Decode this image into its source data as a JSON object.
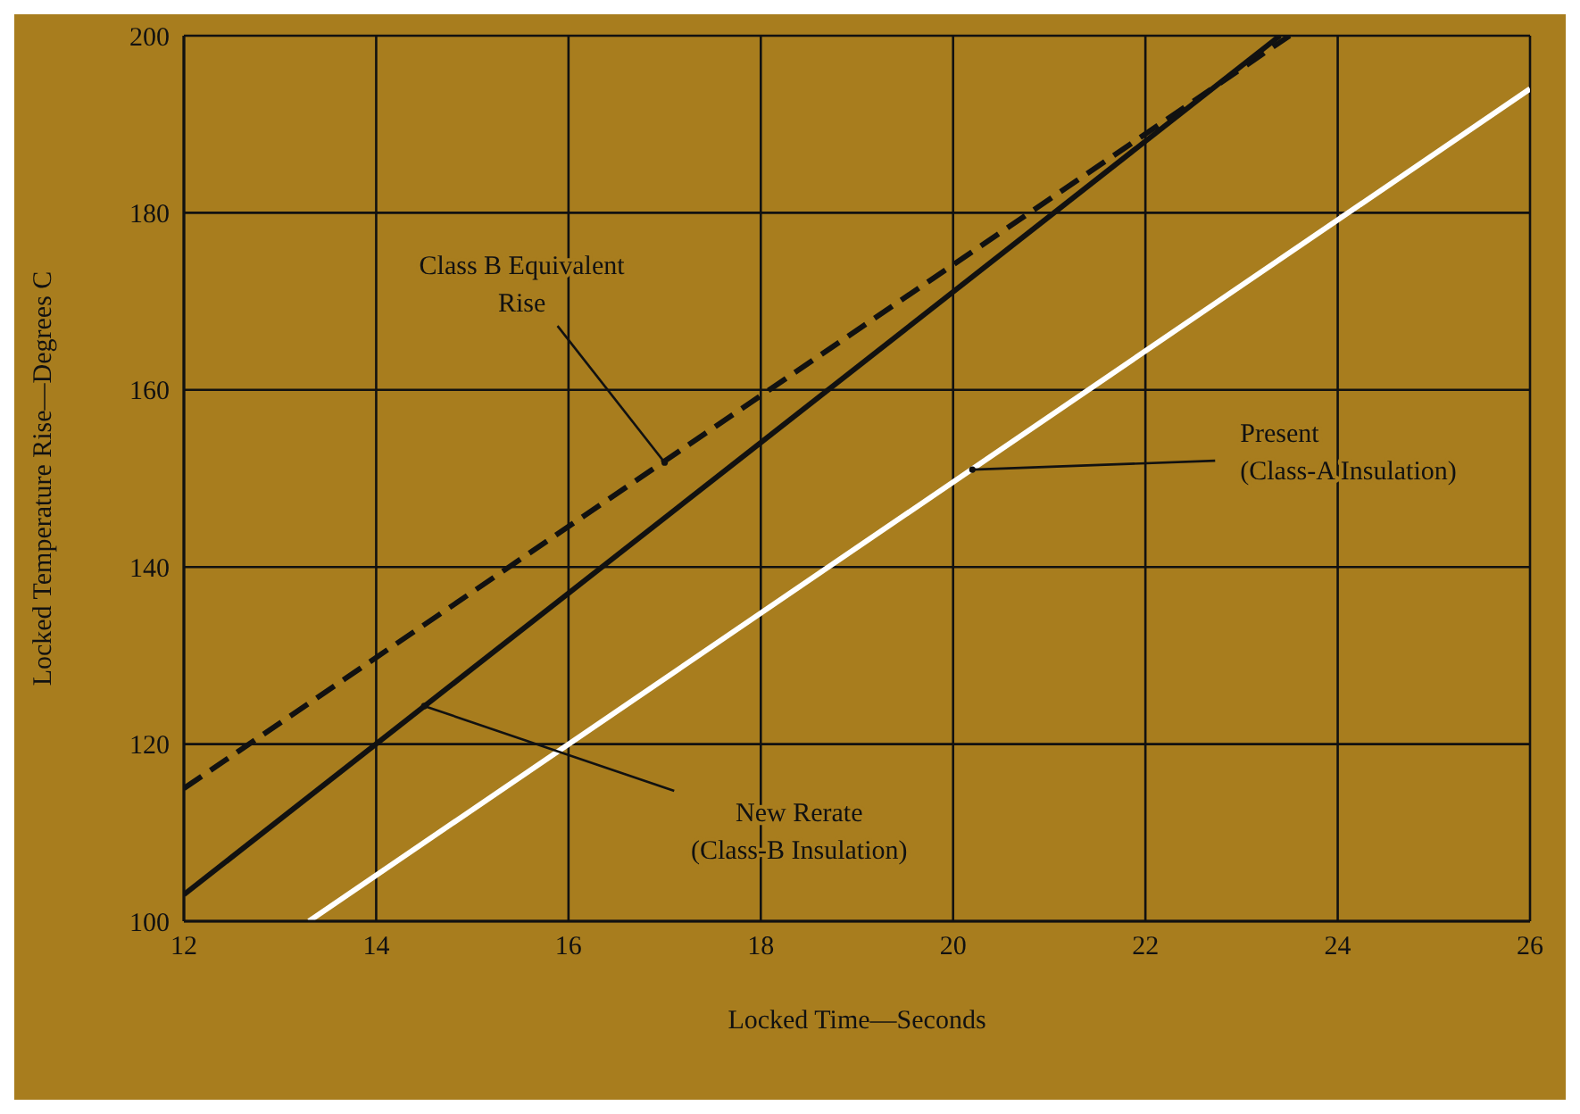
{
  "chart_data": {
    "type": "line",
    "xlabel": "Locked Time—Seconds",
    "ylabel": "Locked Temperature Rise—Degrees C",
    "xlim": [
      12,
      26
    ],
    "ylim": [
      100,
      200
    ],
    "xticks": [
      12,
      14,
      16,
      18,
      20,
      22,
      24,
      26
    ],
    "yticks": [
      100,
      120,
      140,
      160,
      180,
      200
    ],
    "grid": true,
    "legend": false,
    "marker": "none",
    "series": [
      {
        "color": "#111111",
        "line_style": "dashed",
        "x": [
          12,
          23.5
        ],
        "values": [
          115,
          200
        ]
      },
      {
        "color": "#111111",
        "line_style": "solid",
        "x": [
          12,
          23.4
        ],
        "values": [
          103,
          200
        ]
      },
      {
        "color": "#ffffff",
        "line_style": "solid",
        "x": [
          13.3,
          26
        ],
        "values": [
          100,
          194
        ]
      }
    ],
    "annotations": [
      {
        "text": "Class B Equivalent\nRise",
        "x": 17,
        "y": 151.8
      },
      {
        "text": "New Rerate\n(Class-B Insulation)",
        "x": 14.5,
        "y": 124.3
      },
      {
        "text": "Present\n(Class-A Insulation)",
        "x": 20.2,
        "y": 151
      }
    ]
  }
}
